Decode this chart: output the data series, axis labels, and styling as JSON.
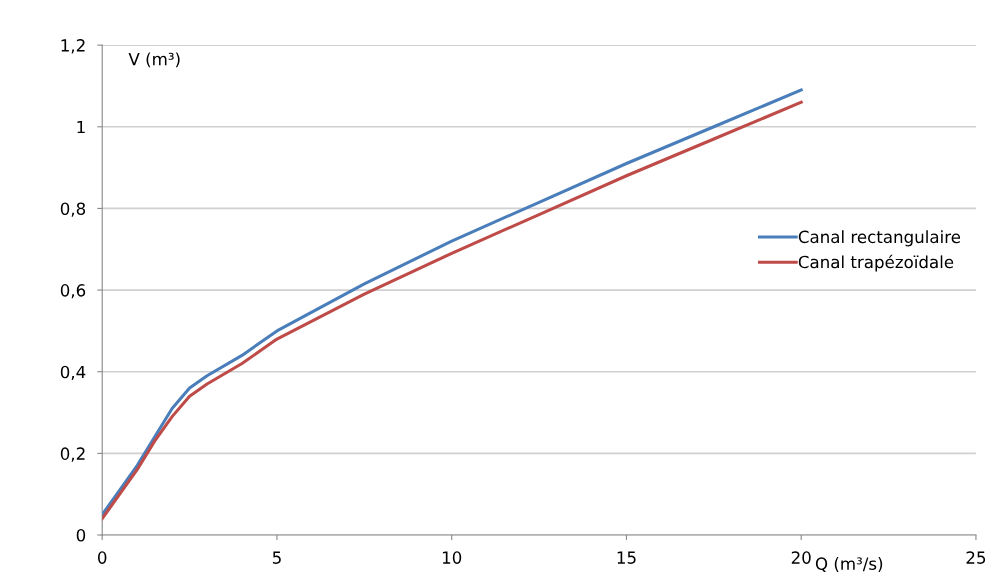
{
  "chart_data": {
    "type": "line",
    "xlabel": "Q (m³/s)",
    "ylabel": "V (m³)",
    "x": [
      0,
      0.5,
      1,
      1.5,
      2,
      2.5,
      3,
      4,
      5,
      7.5,
      10,
      12.5,
      15,
      17.5,
      20
    ],
    "series": [
      {
        "name": "Canal rectangulaire",
        "color": "#4a7ebb",
        "values": [
          0.05,
          0.11,
          0.17,
          0.24,
          0.31,
          0.36,
          0.39,
          0.44,
          0.5,
          0.615,
          0.72,
          0.815,
          0.91,
          1.0,
          1.09
        ]
      },
      {
        "name": "Canal trapézoïdale",
        "color": "#be4b48",
        "values": [
          0.04,
          0.1,
          0.16,
          0.23,
          0.29,
          0.34,
          0.37,
          0.42,
          0.48,
          0.59,
          0.69,
          0.785,
          0.88,
          0.97,
          1.06
        ]
      }
    ],
    "xlim": [
      0,
      25
    ],
    "xticks": [
      0,
      5,
      10,
      15,
      20,
      25
    ],
    "ylim": [
      0,
      1.2
    ],
    "yticks": [
      {
        "value": 0,
        "label": "0"
      },
      {
        "value": 0.2,
        "label": "0,2"
      },
      {
        "value": 0.4,
        "label": "0,4"
      },
      {
        "value": 0.6,
        "label": "0,6"
      },
      {
        "value": 0.8,
        "label": "0,8"
      },
      {
        "value": 1,
        "label": "1"
      },
      {
        "value": 1.2,
        "label": "1,2"
      }
    ],
    "grid": "y",
    "legend": "right",
    "marker": "none",
    "line_style": "solid"
  }
}
